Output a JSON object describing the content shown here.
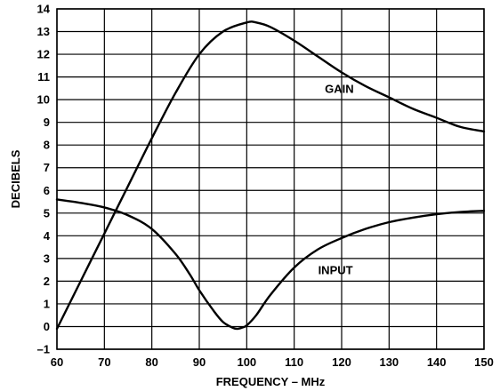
{
  "chart_data": {
    "type": "line",
    "title": "",
    "xlabel": "FREQUENCY – MHz",
    "ylabel": "DECIBELS",
    "xlim": [
      60,
      150
    ],
    "ylim": [
      -1,
      14
    ],
    "xticks": [
      "60",
      "70",
      "80",
      "90",
      "100",
      "110",
      "120",
      "130",
      "140",
      "150"
    ],
    "yticks": [
      "–1",
      "0",
      "1",
      "2",
      "3",
      "4",
      "5",
      "6",
      "7",
      "8",
      "9",
      "10",
      "11",
      "12",
      "13",
      "14"
    ],
    "grid": true,
    "legend": "none",
    "series": [
      {
        "name": "GAIN",
        "x": [
          60,
          65,
          70,
          75,
          80,
          85,
          90,
          95,
          100,
          102,
          105,
          110,
          115,
          120,
          125,
          130,
          135,
          140,
          145,
          150
        ],
        "y": [
          -0.1,
          2.0,
          4.1,
          6.2,
          8.3,
          10.3,
          12.0,
          13.0,
          13.4,
          13.4,
          13.2,
          12.6,
          11.9,
          11.2,
          10.6,
          10.1,
          9.6,
          9.2,
          8.8,
          8.6
        ]
      },
      {
        "name": "INPUT",
        "x": [
          60,
          65,
          70,
          75,
          80,
          85,
          88,
          90,
          93,
          95,
          97,
          98,
          99,
          100,
          102,
          105,
          110,
          115,
          120,
          125,
          130,
          135,
          140,
          145,
          150
        ],
        "y": [
          5.6,
          5.45,
          5.25,
          4.9,
          4.3,
          3.2,
          2.3,
          1.6,
          0.7,
          0.2,
          -0.05,
          -0.1,
          -0.05,
          0.05,
          0.5,
          1.4,
          2.6,
          3.4,
          3.9,
          4.3,
          4.6,
          4.8,
          4.95,
          5.05,
          5.1
        ]
      }
    ],
    "annotations": [
      "GAIN",
      "INPUT"
    ]
  }
}
